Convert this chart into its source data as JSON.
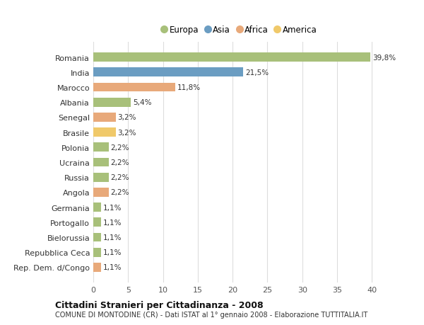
{
  "countries": [
    "Romania",
    "India",
    "Marocco",
    "Albania",
    "Senegal",
    "Brasile",
    "Polonia",
    "Ucraina",
    "Russia",
    "Angola",
    "Germania",
    "Portogallo",
    "Bielorussia",
    "Repubblica Ceca",
    "Rep. Dem. d/Congo"
  ],
  "values": [
    39.8,
    21.5,
    11.8,
    5.4,
    3.2,
    3.2,
    2.2,
    2.2,
    2.2,
    2.2,
    1.1,
    1.1,
    1.1,
    1.1,
    1.1
  ],
  "labels": [
    "39,8%",
    "21,5%",
    "11,8%",
    "5,4%",
    "3,2%",
    "3,2%",
    "2,2%",
    "2,2%",
    "2,2%",
    "2,2%",
    "1,1%",
    "1,1%",
    "1,1%",
    "1,1%",
    "1,1%"
  ],
  "colors": [
    "#a8c07a",
    "#6b9dc2",
    "#e8a97a",
    "#a8c07a",
    "#e8a97a",
    "#f0c96a",
    "#a8c07a",
    "#a8c07a",
    "#a8c07a",
    "#e8a97a",
    "#a8c07a",
    "#a8c07a",
    "#a8c07a",
    "#a8c07a",
    "#e8a97a"
  ],
  "legend_labels": [
    "Europa",
    "Asia",
    "Africa",
    "America"
  ],
  "legend_colors": [
    "#a8c07a",
    "#6b9dc2",
    "#e8a97a",
    "#f0c96a"
  ],
  "title": "Cittadini Stranieri per Cittadinanza - 2008",
  "subtitle": "COMUNE DI MONTODINE (CR) - Dati ISTAT al 1° gennaio 2008 - Elaborazione TUTTITALIA.IT",
  "xlim": [
    0,
    42
  ],
  "xticks": [
    0,
    5,
    10,
    15,
    20,
    25,
    30,
    35,
    40
  ],
  "bg_color": "#ffffff",
  "plot_bg_color": "#ffffff",
  "grid_color": "#dddddd"
}
